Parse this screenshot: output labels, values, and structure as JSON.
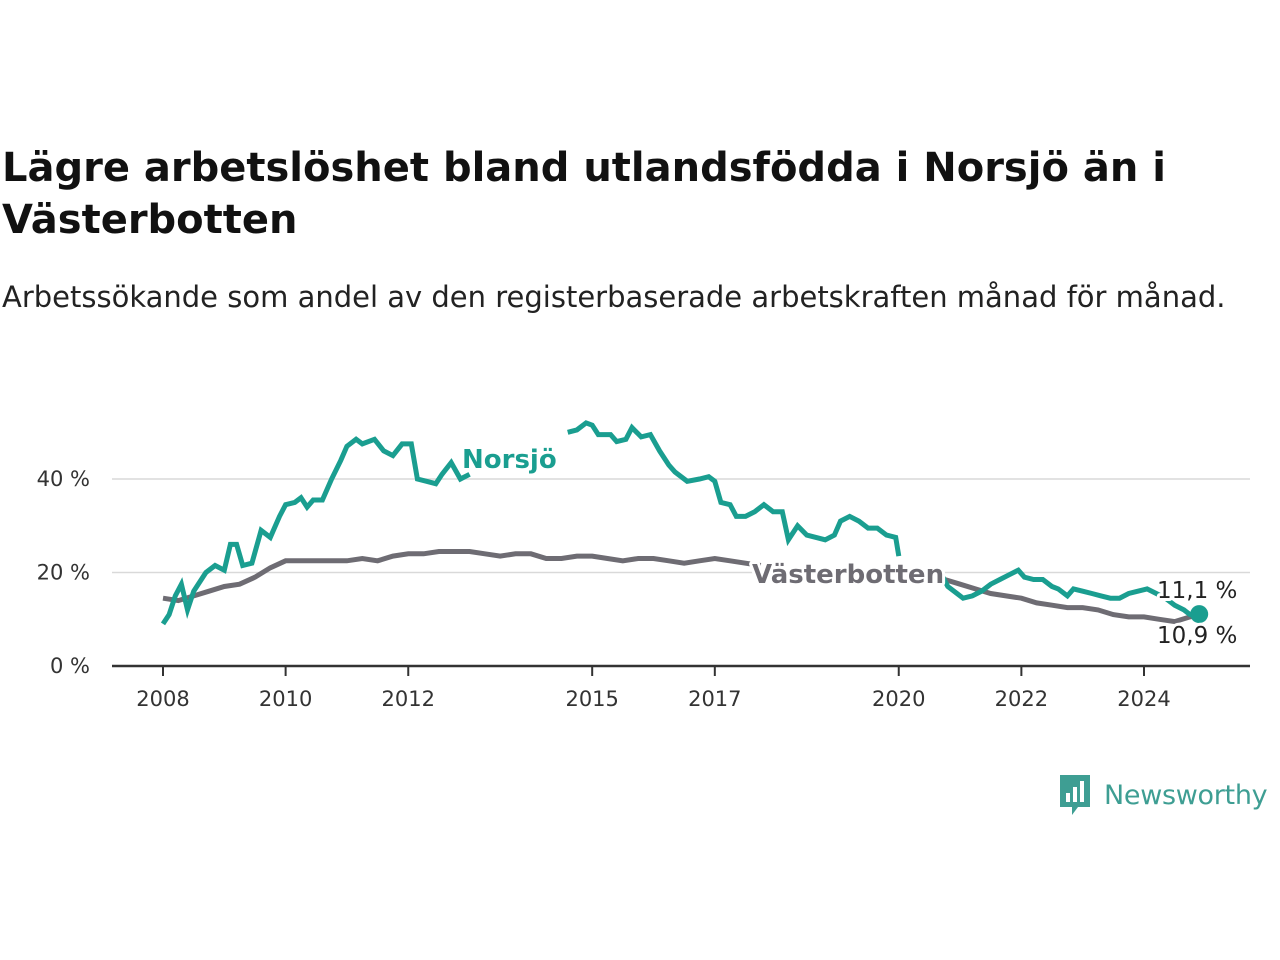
{
  "header": {
    "title": "Lägre arbetslöshet bland utlandsfödda i Norsjö än i Västerbotten",
    "subtitle": "Arbetssökande som andel av den registerbaserade arbetskraften månad för månad."
  },
  "brand": {
    "name": "Newsworthy",
    "color": "#3e9e93",
    "icon": "newsworthy-logo-icon"
  },
  "chart_data": {
    "type": "line",
    "title": "Lägre arbetslöshet bland utlandsfödda i Norsjö än i Västerbotten",
    "subtitle": "Arbetssökande som andel av den registerbaserade arbetskraften månad för månad.",
    "xlabel": "",
    "ylabel": "",
    "xlim": [
      2008,
      2025.2
    ],
    "ylim": [
      0,
      50
    ],
    "x_ticks": [
      {
        "value": 2008,
        "label": "2008"
      },
      {
        "value": 2010,
        "label": "2010"
      },
      {
        "value": 2012,
        "label": "2012"
      },
      {
        "value": 2015,
        "label": "2015"
      },
      {
        "value": 2017,
        "label": "2017"
      },
      {
        "value": 2020,
        "label": "2020"
      },
      {
        "value": 2022,
        "label": "2022"
      },
      {
        "value": 2024,
        "label": "2024"
      }
    ],
    "y_ticks": [
      {
        "value": 0,
        "label": "0 %"
      },
      {
        "value": 20,
        "label": "20 %"
      },
      {
        "value": 40,
        "label": "40 %"
      }
    ],
    "grid": true,
    "legend": "direct labels on lines",
    "series": [
      {
        "name": "Norsjö",
        "color": "#1a9e90",
        "end_label": "11,1 %",
        "points": [
          [
            2008.0,
            9
          ],
          [
            2008.1,
            11
          ],
          [
            2008.2,
            15
          ],
          [
            2008.3,
            17.5
          ],
          [
            2008.4,
            12
          ],
          [
            2008.5,
            16
          ],
          [
            2008.7,
            20
          ],
          [
            2008.85,
            21.5
          ],
          [
            2009.0,
            20.5
          ],
          [
            2009.1,
            26
          ],
          [
            2009.2,
            26
          ],
          [
            2009.3,
            21.5
          ],
          [
            2009.45,
            22
          ],
          [
            2009.6,
            29
          ],
          [
            2009.75,
            27.5
          ],
          [
            2009.9,
            32
          ],
          [
            2010.0,
            34.5
          ],
          [
            2010.15,
            35
          ],
          [
            2010.25,
            36
          ],
          [
            2010.35,
            34
          ],
          [
            2010.45,
            35.5
          ],
          [
            2010.6,
            35.5
          ],
          [
            2010.75,
            40
          ],
          [
            2010.9,
            44
          ],
          [
            2011.0,
            47
          ],
          [
            2011.15,
            48.5
          ],
          [
            2011.25,
            47.5
          ],
          [
            2011.45,
            48.5
          ],
          [
            2011.6,
            46
          ],
          [
            2011.75,
            45
          ],
          [
            2011.9,
            47.5
          ],
          [
            2012.05,
            47.5
          ],
          [
            2012.15,
            40
          ],
          [
            2012.3,
            39.5
          ],
          [
            2012.45,
            39
          ],
          [
            2012.55,
            41
          ],
          [
            2012.7,
            43.5
          ],
          [
            2012.85,
            40
          ],
          [
            2013.0,
            41
          ]
        ],
        "points_2": [
          [
            2014.6,
            50
          ],
          [
            2014.75,
            50.5
          ],
          [
            2014.9,
            52
          ],
          [
            2015.0,
            51.5
          ],
          [
            2015.1,
            49.5
          ],
          [
            2015.3,
            49.5
          ],
          [
            2015.4,
            48
          ],
          [
            2015.55,
            48.5
          ],
          [
            2015.65,
            51
          ],
          [
            2015.8,
            49
          ],
          [
            2015.95,
            49.5
          ],
          [
            2016.1,
            46
          ],
          [
            2016.25,
            43
          ],
          [
            2016.35,
            41.5
          ],
          [
            2016.55,
            39.5
          ],
          [
            2016.75,
            40
          ],
          [
            2016.9,
            40.5
          ],
          [
            2017.0,
            39.5
          ],
          [
            2017.1,
            35
          ],
          [
            2017.25,
            34.5
          ],
          [
            2017.35,
            32
          ],
          [
            2017.5,
            32
          ],
          [
            2017.65,
            33
          ],
          [
            2017.8,
            34.5
          ],
          [
            2017.95,
            33
          ],
          [
            2018.1,
            33
          ],
          [
            2018.2,
            27
          ],
          [
            2018.35,
            30
          ],
          [
            2018.5,
            28
          ],
          [
            2018.65,
            27.5
          ],
          [
            2018.8,
            27
          ],
          [
            2018.95,
            28
          ],
          [
            2019.05,
            31
          ],
          [
            2019.2,
            32
          ],
          [
            2019.35,
            31
          ],
          [
            2019.5,
            29.5
          ],
          [
            2019.65,
            29.5
          ],
          [
            2019.8,
            28
          ],
          [
            2019.95,
            27.5
          ],
          [
            2020.0,
            23.5
          ]
        ],
        "points_3": [
          [
            2020.7,
            19.5
          ],
          [
            2020.8,
            17
          ],
          [
            2020.95,
            15.5
          ],
          [
            2021.05,
            14.5
          ],
          [
            2021.2,
            15
          ],
          [
            2021.35,
            16
          ],
          [
            2021.5,
            17.5
          ],
          [
            2021.65,
            18.5
          ],
          [
            2021.8,
            19.5
          ],
          [
            2021.95,
            20.5
          ],
          [
            2022.05,
            19
          ],
          [
            2022.2,
            18.5
          ],
          [
            2022.35,
            18.5
          ],
          [
            2022.5,
            17
          ],
          [
            2022.6,
            16.5
          ],
          [
            2022.75,
            15
          ],
          [
            2022.85,
            16.5
          ],
          [
            2023.0,
            16
          ],
          [
            2023.15,
            15.5
          ],
          [
            2023.3,
            15
          ],
          [
            2023.45,
            14.5
          ],
          [
            2023.6,
            14.5
          ],
          [
            2023.75,
            15.5
          ],
          [
            2023.9,
            16
          ],
          [
            2024.05,
            16.5
          ],
          [
            2024.2,
            15.5
          ],
          [
            2024.35,
            14.5
          ],
          [
            2024.5,
            13
          ],
          [
            2024.65,
            12
          ],
          [
            2024.75,
            11
          ],
          [
            2024.9,
            11.1
          ]
        ]
      },
      {
        "name": "Västerbotten",
        "color": "#6e6c73",
        "end_label": "10,9 %",
        "points": [
          [
            2008.0,
            14.5
          ],
          [
            2008.25,
            14
          ],
          [
            2008.5,
            15
          ],
          [
            2008.75,
            16
          ],
          [
            2009.0,
            17
          ],
          [
            2009.25,
            17.5
          ],
          [
            2009.5,
            19
          ],
          [
            2009.75,
            21
          ],
          [
            2010.0,
            22.5
          ],
          [
            2010.25,
            22.5
          ],
          [
            2010.5,
            22.5
          ],
          [
            2010.75,
            22.5
          ],
          [
            2011.0,
            22.5
          ],
          [
            2011.25,
            23
          ],
          [
            2011.5,
            22.5
          ],
          [
            2011.75,
            23.5
          ],
          [
            2012.0,
            24
          ],
          [
            2012.25,
            24
          ],
          [
            2012.5,
            24.5
          ],
          [
            2012.75,
            24.5
          ],
          [
            2013.0,
            24.5
          ],
          [
            2013.25,
            24
          ],
          [
            2013.5,
            23.5
          ],
          [
            2013.75,
            24
          ],
          [
            2014.0,
            24
          ],
          [
            2014.25,
            23
          ],
          [
            2014.5,
            23
          ],
          [
            2014.75,
            23.5
          ],
          [
            2015.0,
            23.5
          ],
          [
            2015.25,
            23
          ],
          [
            2015.5,
            22.5
          ],
          [
            2015.75,
            23
          ],
          [
            2016.0,
            23
          ],
          [
            2016.25,
            22.5
          ],
          [
            2016.5,
            22
          ],
          [
            2016.75,
            22.5
          ],
          [
            2017.0,
            23
          ],
          [
            2017.25,
            22.5
          ],
          [
            2017.5,
            22
          ],
          [
            2017.75,
            21.5
          ]
        ],
        "points_2": [
          [
            2020.75,
            18.5
          ],
          [
            2021.0,
            17.5
          ],
          [
            2021.25,
            16.5
          ],
          [
            2021.5,
            15.5
          ],
          [
            2021.75,
            15
          ],
          [
            2022.0,
            14.5
          ],
          [
            2022.25,
            13.5
          ],
          [
            2022.5,
            13
          ],
          [
            2022.75,
            12.5
          ],
          [
            2023.0,
            12.5
          ],
          [
            2023.25,
            12
          ],
          [
            2023.5,
            11
          ],
          [
            2023.75,
            10.5
          ],
          [
            2024.0,
            10.5
          ],
          [
            2024.25,
            10
          ],
          [
            2024.5,
            9.5
          ],
          [
            2024.75,
            10.5
          ],
          [
            2024.9,
            10.9
          ]
        ]
      }
    ],
    "end_marker": {
      "series": "Norsjö",
      "x": 2024.9,
      "y": 11.1
    }
  }
}
